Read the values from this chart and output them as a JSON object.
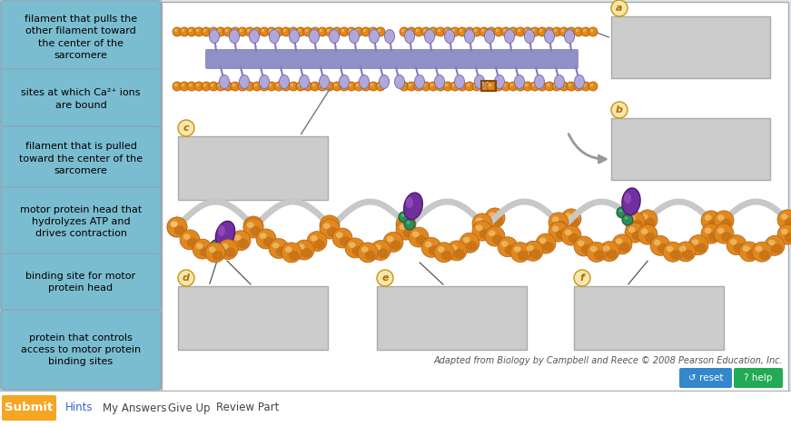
{
  "bg_color": "#dde8ee",
  "main_bg": "#f5f5f5",
  "left_panel_bg": "#ccd8e0",
  "label_box_color": "#7bbdd0",
  "label_box_edge": "#88aabc",
  "drop_box_color": "#cccccc",
  "drop_box_edge": "#aaaaaa",
  "left_labels": [
    "filament that pulls the\nother filament toward\nthe center of the\nsarcomere",
    "sites at which Ca²⁺ ions\nare bound",
    "filament that is pulled\ntoward the center of the\nsarcomere",
    "motor protein head that\nhydrolyzes ATP and\ndrives contraction",
    "binding site for motor\nprotein head",
    "protein that controls\naccess to motor protein\nbinding sites"
  ],
  "citation": "Adapted from Biology by Campbell and Reece © 2008 Pearson Education, Inc.",
  "bottom_bar_color": "#ffffff",
  "submit_color": "#f5a623",
  "submit_text": "Submit",
  "bottom_links": [
    "Hints",
    "My Answers",
    "Give Up",
    "Review Part"
  ],
  "actin_color": "#e08820",
  "actin_edge": "#b86000",
  "myosin_bar_color": "#9090c8",
  "myosin_head_color": "#a8a0d8",
  "myosin_head_edge": "#7868b8",
  "helix_actin_color": "#e08820",
  "helix_actin_edge": "#b06010",
  "myosin_purple": "#7030a0",
  "myosin_purple_edge": "#501870",
  "green_atp": "#2e8b57",
  "green_atp_edge": "#1a5c38",
  "tropomyosin_color": "#c8c8c8",
  "tropomyosin_edge": "#989898"
}
